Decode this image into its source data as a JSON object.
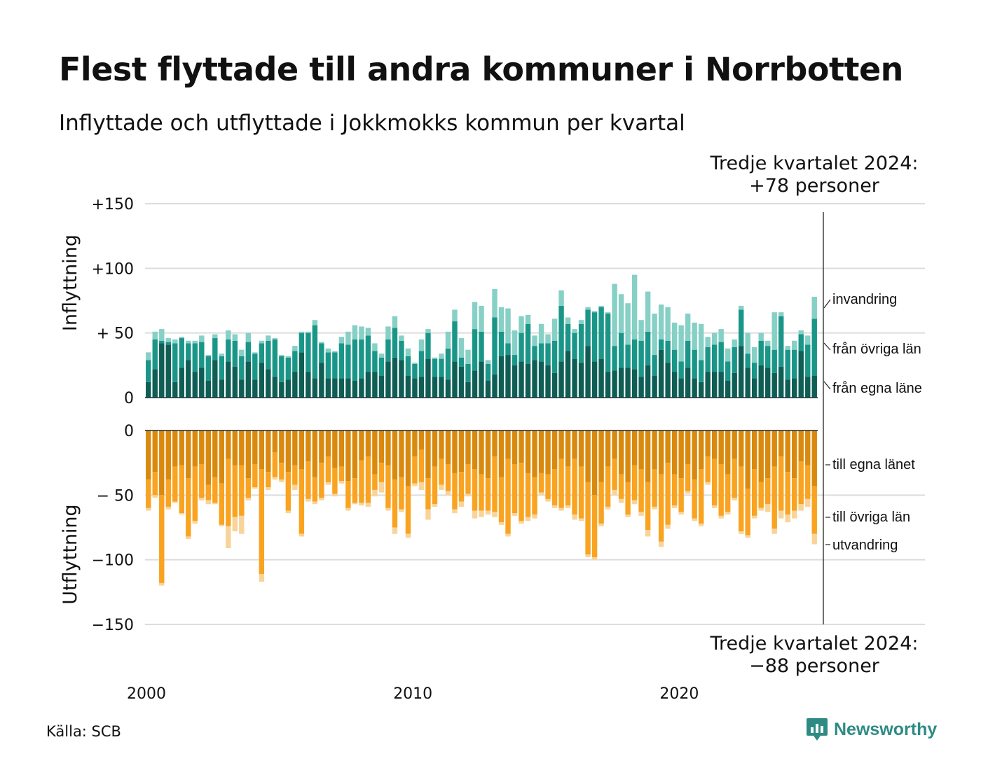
{
  "title": "Flest flyttade till andra kommuner i Norrbotten",
  "subtitle": "Inflyttade och utflyttade i Jokkmokks kommun per kvartal",
  "annotation_top": {
    "line1": "Tredje kvartalet 2024:",
    "line2": "+78 personer"
  },
  "annotation_bottom": {
    "line1": "Tredje kvartalet 2024:",
    "line2": "−88 personer"
  },
  "source": "Källa: SCB",
  "brand": "Newsworthy",
  "colors": {
    "in_egna": "#0e5e55",
    "in_ovriga": "#1a9688",
    "in_invandring": "#86d0c6",
    "out_egna": "#d98a0e",
    "out_ovriga": "#f9a320",
    "out_utvandring": "#f8d49a",
    "grid": "#dddddd",
    "brand": "#2e8b84"
  },
  "chart_data": [
    {
      "type": "bar",
      "stacked": true,
      "panel": "inflyttning",
      "ylabel": "Inflyttning",
      "x_start": "2000-Q1",
      "x_end": "2024-Q3",
      "x_ticks": [
        "2000",
        "2010",
        "2020"
      ],
      "y_ticks": [
        "+150",
        "+100",
        "+ 50",
        "0"
      ],
      "y_tick_values": [
        150,
        100,
        50,
        0
      ],
      "ylim": [
        0,
        150
      ],
      "series": [
        {
          "name": "från egna läne",
          "values": [
            12,
            22,
            42,
            41,
            12,
            23,
            29,
            20,
            23,
            13,
            29,
            14,
            28,
            24,
            14,
            28,
            14,
            27,
            22,
            16,
            12,
            14,
            20,
            35,
            20,
            15,
            27,
            15,
            15,
            15,
            15,
            13,
            15,
            20,
            20,
            17,
            28,
            31,
            29,
            17,
            15,
            16,
            30,
            16,
            16,
            14,
            28,
            24,
            12,
            21,
            28,
            13,
            18,
            32,
            33,
            25,
            28,
            26,
            29,
            28,
            25,
            19,
            28,
            36,
            30,
            27,
            40,
            28,
            30,
            20,
            21,
            23,
            23,
            22,
            16,
            25,
            17,
            37,
            27,
            20,
            15,
            23,
            15,
            12,
            20,
            20,
            20,
            13,
            19,
            40,
            23,
            15,
            25,
            23,
            19,
            24,
            14,
            15,
            36,
            16,
            17
          ]
        },
        {
          "name": "från övriga län",
          "values": [
            17,
            23,
            2,
            2,
            30,
            23,
            13,
            22,
            20,
            19,
            17,
            18,
            17,
            20,
            18,
            15,
            20,
            15,
            22,
            29,
            20,
            17,
            16,
            15,
            30,
            41,
            15,
            20,
            20,
            27,
            26,
            32,
            30,
            28,
            16,
            14,
            17,
            23,
            15,
            15,
            11,
            20,
            20,
            14,
            14,
            24,
            31,
            7,
            14,
            32,
            23,
            13,
            44,
            19,
            9,
            8,
            22,
            31,
            11,
            14,
            17,
            25,
            43,
            21,
            20,
            30,
            28,
            38,
            40,
            45,
            19,
            27,
            18,
            23,
            28,
            26,
            16,
            8,
            17,
            17,
            13,
            21,
            22,
            17,
            19,
            21,
            23,
            15,
            20,
            28,
            11,
            12,
            19,
            17,
            18,
            39,
            23,
            22,
            13,
            25,
            44
          ]
        },
        {
          "name": "invandring",
          "values": [
            6,
            6,
            9,
            3,
            3,
            1,
            2,
            2,
            5,
            1,
            3,
            2,
            7,
            5,
            5,
            7,
            1,
            2,
            4,
            1,
            1,
            1,
            4,
            1,
            1,
            4,
            1,
            3,
            1,
            5,
            10,
            11,
            10,
            6,
            6,
            3,
            10,
            9,
            4,
            6,
            1,
            9,
            3,
            1,
            4,
            13,
            9,
            15,
            11,
            21,
            20,
            3,
            22,
            19,
            27,
            19,
            13,
            7,
            8,
            15,
            7,
            17,
            12,
            5,
            3,
            3,
            2,
            1,
            1,
            1,
            48,
            30,
            32,
            50,
            16,
            31,
            32,
            27,
            26,
            21,
            28,
            21,
            21,
            28,
            8,
            9,
            10,
            10,
            6,
            3,
            16,
            12,
            6,
            4,
            29,
            3,
            3,
            7,
            3,
            7,
            17
          ]
        }
      ],
      "series_labels": [
        "invandring",
        "från övriga län",
        "från egna läne"
      ]
    },
    {
      "type": "bar",
      "stacked": true,
      "panel": "utflyttning",
      "ylabel": "Utflyttning",
      "y_ticks": [
        "0",
        "− 50",
        "−100",
        "−150"
      ],
      "y_tick_values": [
        0,
        -50,
        -100,
        -150
      ],
      "ylim": [
        -150,
        0
      ],
      "series": [
        {
          "name": "till egna länet",
          "values": [
            -38,
            -32,
            -50,
            -38,
            -28,
            -27,
            -37,
            -28,
            -26,
            -42,
            -36,
            -41,
            -22,
            -27,
            -27,
            -37,
            -26,
            -30,
            -32,
            -17,
            -25,
            -32,
            -27,
            -30,
            -24,
            -36,
            -25,
            -20,
            -29,
            -28,
            -39,
            -37,
            -23,
            -20,
            -34,
            -25,
            -27,
            -38,
            -36,
            -43,
            -20,
            -15,
            -37,
            -28,
            -22,
            -26,
            -33,
            -32,
            -26,
            -30,
            -34,
            -37,
            -20,
            -36,
            -22,
            -26,
            -25,
            -33,
            -36,
            -33,
            -34,
            -30,
            -22,
            -28,
            -22,
            -28,
            -40,
            -50,
            -40,
            -28,
            -22,
            -34,
            -40,
            -27,
            -30,
            -40,
            -30,
            -34,
            -25,
            -34,
            -37,
            -26,
            -38,
            -30,
            -20,
            -22,
            -26,
            -34,
            -22,
            -28,
            -45,
            -30,
            -40,
            -37,
            -28,
            -20,
            -32,
            -37,
            -24,
            -27,
            -43
          ]
        },
        {
          "name": "till övriga län",
          "values": [
            -22,
            -18,
            -68,
            -21,
            -27,
            -37,
            -45,
            -42,
            -26,
            -12,
            -20,
            -32,
            -52,
            -40,
            -39,
            -15,
            -18,
            -81,
            -12,
            -19,
            -13,
            -30,
            -15,
            -50,
            -29,
            -19,
            -27,
            -20,
            -20,
            -11,
            -21,
            -19,
            -33,
            -36,
            -12,
            -15,
            -33,
            -37,
            -25,
            -37,
            -21,
            -25,
            -24,
            -29,
            -20,
            -21,
            -28,
            -23,
            -23,
            -32,
            -28,
            -25,
            -43,
            -35,
            -58,
            -38,
            -45,
            -34,
            -29,
            -15,
            -19,
            -28,
            -38,
            -30,
            -43,
            -40,
            -56,
            -48,
            -32,
            -31,
            -24,
            -19,
            -25,
            -27,
            -33,
            -37,
            -29,
            -52,
            -48,
            -24,
            -26,
            -21,
            -30,
            -42,
            -20,
            -36,
            -40,
            -29,
            -30,
            -50,
            -36,
            -36,
            -20,
            -20,
            -48,
            -42,
            -33,
            -25,
            -33,
            -26,
            -37
          ]
        },
        {
          "name": "utvandring",
          "values": [
            -2,
            -2,
            -2,
            -2,
            -1,
            -1,
            -2,
            -2,
            -2,
            -3,
            -1,
            -1,
            -17,
            -11,
            -14,
            -2,
            -1,
            -6,
            -2,
            -2,
            -2,
            -2,
            -4,
            -2,
            -2,
            -2,
            -2,
            -2,
            -2,
            -2,
            -2,
            -1,
            -2,
            -3,
            -5,
            -8,
            -2,
            -5,
            -2,
            -3,
            -2,
            -6,
            -8,
            -2,
            -4,
            -3,
            -3,
            -4,
            -2,
            -6,
            -5,
            -3,
            -4,
            -2,
            -2,
            -2,
            -2,
            -3,
            -3,
            -2,
            -2,
            -2,
            -2,
            -2,
            -4,
            -2,
            -2,
            -2,
            -2,
            -2,
            -4,
            -3,
            -2,
            -3,
            -3,
            -5,
            -2,
            -4,
            -3,
            -2,
            -2,
            -2,
            -2,
            -2,
            -2,
            -2,
            -2,
            -2,
            -2,
            -2,
            -2,
            -2,
            -2,
            -6,
            -4,
            -6,
            -6,
            -6,
            -5,
            -6,
            -8
          ]
        }
      ],
      "series_labels": [
        "till egna länet",
        "till övriga län",
        "utvandring"
      ]
    }
  ]
}
